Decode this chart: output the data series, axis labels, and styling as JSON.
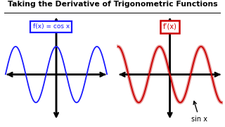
{
  "title": "Taking the Derivative of Trigonometric Functions",
  "title_fontsize": 7.8,
  "title_fontweight": "bold",
  "bg_color": "#ffffff",
  "left_label": "f(x) = cos x",
  "right_label": "f’(x)",
  "left_box_color": "#1a1aff",
  "right_box_color": "#cc0000",
  "cos_color": "#1a1aff",
  "sin_color_dark": "#cc0000",
  "sin_color_light": "#e8a0a0",
  "annotation": "sin x",
  "annotation_fontsize": 7,
  "freq": 1.6,
  "amplitude": 0.85,
  "xlim": [
    -5.0,
    5.0
  ],
  "ylim": [
    -1.4,
    1.8
  ]
}
